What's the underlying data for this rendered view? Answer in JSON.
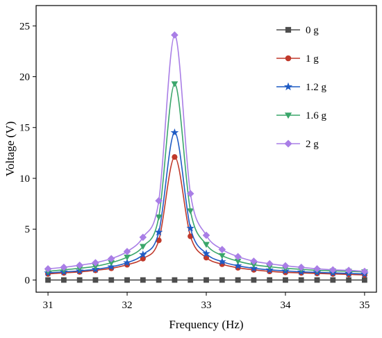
{
  "chart_data": {
    "type": "line",
    "xlabel": "Frequency (Hz)",
    "ylabel": "Voltage (V)",
    "xlim": [
      30.85,
      35.15
    ],
    "ylim": [
      -1.2,
      27
    ],
    "xticks": [
      31,
      32,
      33,
      34,
      35
    ],
    "yticks": [
      0,
      5,
      10,
      15,
      20,
      25
    ],
    "grid": false,
    "legend_position": "top-right",
    "x": [
      31.0,
      31.2,
      31.4,
      31.6,
      31.8,
      32.0,
      32.2,
      32.4,
      32.6,
      32.8,
      33.0,
      33.2,
      33.4,
      33.6,
      33.8,
      34.0,
      34.2,
      34.4,
      34.6,
      34.8,
      35.0
    ],
    "series": [
      {
        "name": "0 g",
        "color": "#4d4d4d",
        "marker": "square",
        "values": [
          0,
          0,
          0,
          0,
          0,
          0,
          0,
          0,
          0,
          0,
          0,
          0,
          0,
          0,
          0,
          0,
          0,
          0,
          0,
          0,
          0
        ]
      },
      {
        "name": "1 g",
        "color": "#c0392b",
        "marker": "circle",
        "values": [
          0.6,
          0.7,
          0.8,
          0.95,
          1.15,
          1.5,
          2.1,
          3.9,
          12.1,
          4.3,
          2.2,
          1.55,
          1.2,
          1.0,
          0.85,
          0.75,
          0.7,
          0.65,
          0.6,
          0.55,
          0.5
        ]
      },
      {
        "name": "1.2 g",
        "color": "#1f5bc4",
        "marker": "star",
        "values": [
          0.7,
          0.8,
          0.9,
          1.05,
          1.3,
          1.7,
          2.5,
          4.7,
          14.5,
          5.1,
          2.6,
          1.8,
          1.4,
          1.15,
          1.0,
          0.9,
          0.8,
          0.75,
          0.7,
          0.65,
          0.6
        ]
      },
      {
        "name": "1.6 g",
        "color": "#3aa66a",
        "marker": "triangle-down",
        "values": [
          0.85,
          1.0,
          1.15,
          1.35,
          1.7,
          2.25,
          3.3,
          6.2,
          19.3,
          6.8,
          3.5,
          2.4,
          1.85,
          1.5,
          1.3,
          1.15,
          1.05,
          0.95,
          0.9,
          0.85,
          0.8
        ]
      },
      {
        "name": "2 g",
        "color": "#a97ee6",
        "marker": "diamond",
        "values": [
          1.1,
          1.25,
          1.45,
          1.7,
          2.1,
          2.8,
          4.2,
          7.8,
          24.1,
          8.5,
          4.4,
          3.0,
          2.3,
          1.85,
          1.6,
          1.4,
          1.25,
          1.1,
          1.0,
          0.95,
          0.85
        ]
      }
    ]
  }
}
